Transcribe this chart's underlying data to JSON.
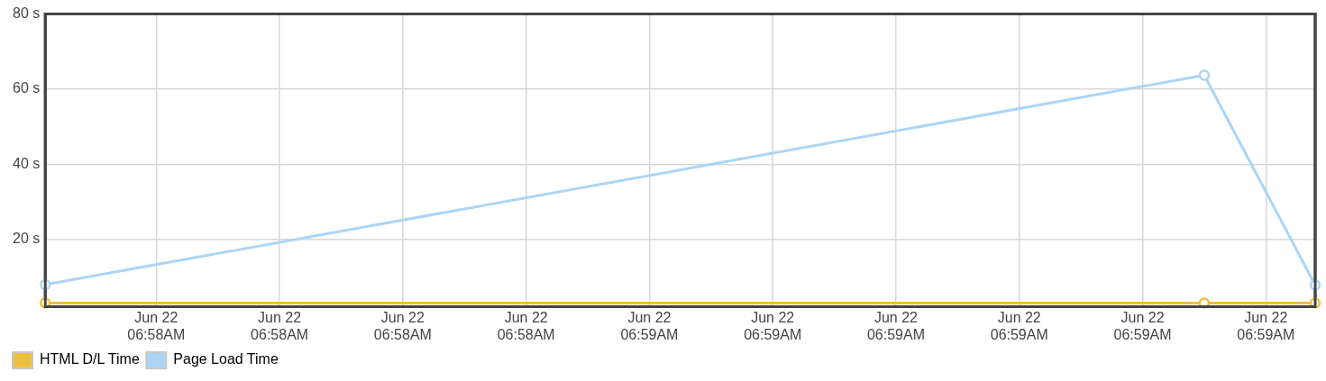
{
  "chart_data": {
    "type": "line",
    "x": [
      "--06-22T06:58:11",
      "--06-22T06:59:45",
      "--06-22T06:59:54"
    ],
    "series": [
      {
        "name": "HTML D/L Time",
        "color": "#ecc03c",
        "values": [
          3,
          3,
          3
        ]
      },
      {
        "name": "Page Load Time",
        "color": "#acd5f5",
        "values": [
          7.9,
          63.7,
          7.8
        ]
      }
    ],
    "xlim": [
      "--06-22T06:58:11",
      "--06-22T06:59:54"
    ],
    "xticks": [
      {
        "value": "--06-22T06:58:20",
        "label": "Jun 22\n06:58AM"
      },
      {
        "value": "--06-22T06:58:30",
        "label": "Jun 22\n06:58AM"
      },
      {
        "value": "--06-22T06:58:40",
        "label": "Jun 22\n06:58AM"
      },
      {
        "value": "--06-22T06:58:50",
        "label": "Jun 22\n06:58AM"
      },
      {
        "value": "--06-22T06:59:00",
        "label": "Jun 22\n06:59AM"
      },
      {
        "value": "--06-22T06:59:10",
        "label": "Jun 22\n06:59AM"
      },
      {
        "value": "--06-22T06:59:20",
        "label": "Jun 22\n06:59AM"
      },
      {
        "value": "--06-22T06:59:30",
        "label": "Jun 22\n06:59AM"
      },
      {
        "value": "--06-22T06:59:40",
        "label": "Jun 22\n06:59AM"
      },
      {
        "value": "--06-22T06:59:50",
        "label": "Jun 22\n06:59AM"
      }
    ],
    "ylim": [
      2,
      80
    ],
    "yticks": [
      {
        "value": 20,
        "label": "20 s"
      },
      {
        "value": 40,
        "label": "40 s"
      },
      {
        "value": 60,
        "label": "60 s"
      },
      {
        "value": 80,
        "label": "80 s"
      }
    ],
    "grid": true,
    "legend": "bottom left",
    "marker": "circle",
    "line_style": "solid"
  }
}
